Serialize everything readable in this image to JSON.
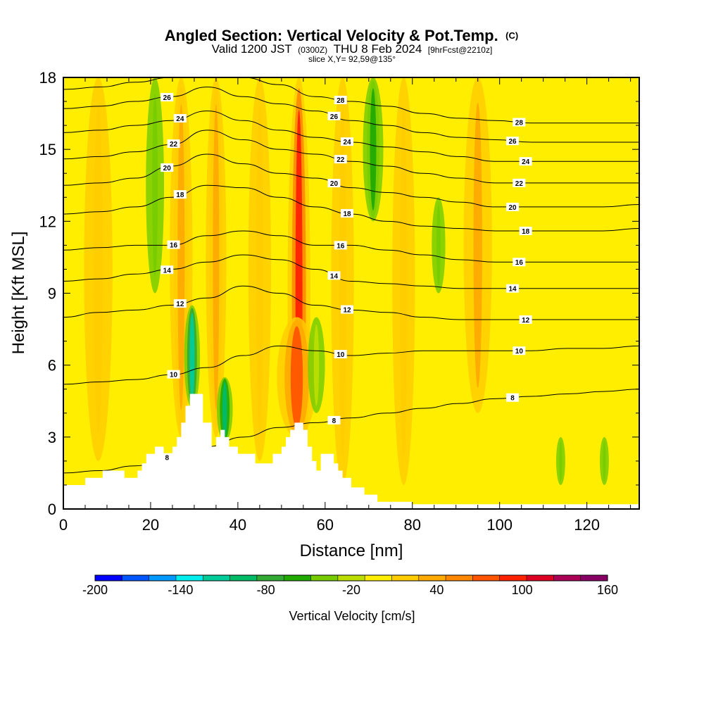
{
  "chart_data": {
    "type": "heatmap",
    "title": "Angled Section: Vertical Velocity & Pot.Temp.",
    "title_unit": "(C)",
    "subtitle_parts": [
      "Valid 1200 JST",
      "(0300Z)",
      "THU 8 Feb 2024",
      "[9hrFcst@2210z]"
    ],
    "subtitle2": "slice X,Y= 92,59@135°",
    "xlabel": "Distance [nm]",
    "ylabel": "Height [Kft MSL]",
    "xlim": [
      0,
      132
    ],
    "ylim": [
      0,
      18
    ],
    "xticks": [
      "0",
      "20",
      "40",
      "60",
      "80",
      "100",
      "120"
    ],
    "yticks": [
      "0",
      "3",
      "6",
      "9",
      "12",
      "15",
      "18"
    ],
    "colorbar": {
      "label": "Vertical Velocity [cm/s]",
      "min": -200,
      "max": 160,
      "step": 20,
      "ticks": [
        "-200",
        "-140",
        "-80",
        "-20",
        "40",
        "100",
        "160"
      ],
      "colors": [
        "#0000ff",
        "#0055ff",
        "#0099ff",
        "#00eeee",
        "#00cc99",
        "#00bb66",
        "#33aa33",
        "#22aa00",
        "#77cc00",
        "#bbdd00",
        "#ffee00",
        "#ffcc00",
        "#ffaa00",
        "#ff8800",
        "#ff5500",
        "#ff2200",
        "#dd0022",
        "#aa0055",
        "#880066"
      ]
    },
    "terrain": [
      [
        0,
        1.0
      ],
      [
        4,
        1.0
      ],
      [
        5,
        1.3
      ],
      [
        8,
        1.3
      ],
      [
        9,
        1.6
      ],
      [
        13,
        1.6
      ],
      [
        14,
        1.3
      ],
      [
        15,
        1.3
      ],
      [
        17,
        1.6
      ],
      [
        18,
        1.9
      ],
      [
        19,
        2.3
      ],
      [
        21,
        2.6
      ],
      [
        23,
        2.3
      ],
      [
        25,
        2.6
      ],
      [
        26,
        3.0
      ],
      [
        27,
        3.6
      ],
      [
        28,
        4.3
      ],
      [
        29,
        4.8
      ],
      [
        31,
        4.8
      ],
      [
        32,
        3.6
      ],
      [
        34,
        2.6
      ],
      [
        35,
        3.0
      ],
      [
        36,
        3.3
      ],
      [
        37,
        3.0
      ],
      [
        38,
        2.6
      ],
      [
        39,
        2.6
      ],
      [
        40,
        2.3
      ],
      [
        42,
        2.3
      ],
      [
        44,
        1.9
      ],
      [
        46,
        1.9
      ],
      [
        48,
        2.3
      ],
      [
        50,
        2.6
      ],
      [
        51,
        3.0
      ],
      [
        52,
        3.3
      ],
      [
        53,
        3.6
      ],
      [
        55,
        3.3
      ],
      [
        56,
        2.6
      ],
      [
        57,
        2.0
      ],
      [
        58,
        1.6
      ],
      [
        59,
        2.3
      ],
      [
        61,
        2.3
      ],
      [
        62,
        1.9
      ],
      [
        63,
        1.6
      ],
      [
        64,
        1.3
      ],
      [
        66,
        0.9
      ],
      [
        69,
        0.6
      ],
      [
        72,
        0.3
      ],
      [
        80,
        0.2
      ],
      [
        100,
        0.2
      ],
      [
        132,
        0.2
      ]
    ],
    "theta_contours": [
      {
        "label": "8",
        "y": [
          1.5,
          1.6,
          1.8,
          2.2,
          2.6,
          3.0,
          3.4,
          3.6,
          3.8,
          4.0,
          4.2,
          4.4,
          4.6,
          4.7,
          4.8,
          4.9,
          5.0
        ]
      },
      {
        "label": "10",
        "y": [
          5.2,
          5.3,
          5.4,
          5.6,
          5.9,
          6.4,
          6.8,
          6.6,
          6.4,
          6.5,
          6.6,
          6.6,
          6.6,
          6.6,
          6.7,
          6.7,
          6.8
        ]
      },
      {
        "label": "12",
        "y": [
          8.0,
          8.2,
          8.3,
          8.5,
          8.8,
          9.3,
          9.0,
          8.5,
          8.3,
          8.2,
          8.0,
          7.9,
          7.9,
          7.9,
          7.9,
          7.9,
          7.9
        ]
      },
      {
        "label": "14",
        "y": [
          9.5,
          9.6,
          9.8,
          10.0,
          10.3,
          10.6,
          10.4,
          10.0,
          9.5,
          9.4,
          9.3,
          9.2,
          9.2,
          9.2,
          9.2,
          9.2,
          9.2
        ]
      },
      {
        "label": "16",
        "y": [
          10.8,
          10.9,
          11.0,
          11.0,
          11.4,
          11.6,
          11.4,
          11.0,
          11.0,
          10.8,
          10.6,
          10.4,
          10.3,
          10.3,
          10.3,
          10.3,
          10.3
        ]
      },
      {
        "label": "18",
        "y": [
          12.3,
          12.4,
          12.6,
          13.0,
          13.5,
          13.4,
          13.0,
          12.6,
          12.3,
          12.0,
          11.8,
          11.7,
          11.6,
          11.6,
          11.6,
          11.6,
          11.7
        ]
      },
      {
        "label": "20",
        "y": [
          13.5,
          13.6,
          13.8,
          14.3,
          14.8,
          14.4,
          14.0,
          13.8,
          13.4,
          13.2,
          13.0,
          12.8,
          12.6,
          12.6,
          12.6,
          12.6,
          12.7
        ]
      },
      {
        "label": "22",
        "y": [
          14.6,
          14.7,
          14.9,
          15.2,
          15.8,
          15.4,
          15.0,
          14.8,
          14.5,
          14.3,
          14.0,
          13.8,
          13.6,
          13.6,
          13.6,
          13.6,
          13.6
        ]
      },
      {
        "label": "24",
        "y": [
          15.7,
          15.8,
          16.0,
          16.2,
          16.6,
          16.2,
          15.8,
          15.5,
          15.3,
          15.1,
          14.9,
          14.7,
          14.5,
          14.5,
          14.5,
          14.5,
          14.5
        ]
      },
      {
        "label": "26",
        "y": [
          16.7,
          16.8,
          17.0,
          17.2,
          17.6,
          17.2,
          16.9,
          16.6,
          16.2,
          16.0,
          15.7,
          15.5,
          15.4,
          15.3,
          15.3,
          15.3,
          15.3
        ]
      },
      {
        "label": "28",
        "y": [
          17.5,
          17.6,
          17.8,
          18.0,
          18.0,
          18.0,
          17.7,
          17.2,
          17.0,
          16.8,
          16.5,
          16.3,
          16.2,
          16.1,
          16.1,
          16.1,
          16.1
        ]
      }
    ],
    "updrafts": [
      {
        "x": 54,
        "y0": 0,
        "y1": 18,
        "w": 2.0,
        "v": 110
      },
      {
        "x": 53.5,
        "y0": 3,
        "y1": 8,
        "w": 3.5,
        "v": 90
      },
      {
        "x": 35,
        "y0": 3,
        "y1": 18,
        "w": 1.8,
        "v": 50
      },
      {
        "x": 27,
        "y0": 3,
        "y1": 18,
        "w": 2.0,
        "v": 50
      },
      {
        "x": 95,
        "y0": 4,
        "y1": 18,
        "w": 2.5,
        "v": 40
      },
      {
        "x": 45,
        "y0": 2,
        "y1": 18,
        "w": 2.0,
        "v": 30
      },
      {
        "x": 78,
        "y0": 1,
        "y1": 18,
        "w": 2.0,
        "v": 30
      },
      {
        "x": 8,
        "y0": 2,
        "y1": 18,
        "w": 2.5,
        "v": 30
      },
      {
        "x": 64,
        "y0": 1,
        "y1": 18,
        "w": 2.0,
        "v": 30
      }
    ],
    "downdrafts": [
      {
        "x": 29.5,
        "y0": 4.2,
        "y1": 8.5,
        "w": 1.4,
        "v": -120
      },
      {
        "x": 37,
        "y0": 2.8,
        "y1": 5.5,
        "w": 1.4,
        "v": -90
      },
      {
        "x": 71,
        "y0": 12,
        "y1": 18,
        "w": 1.8,
        "v": -60
      },
      {
        "x": 21,
        "y0": 9,
        "y1": 18,
        "w": 1.6,
        "v": -40
      },
      {
        "x": 58,
        "y0": 4,
        "y1": 8,
        "w": 1.5,
        "v": -20
      },
      {
        "x": 86,
        "y0": 9,
        "y1": 13,
        "w": 1.2,
        "v": -40
      },
      {
        "x": 114,
        "y0": 1,
        "y1": 3,
        "w": 0.8,
        "v": -40
      },
      {
        "x": 124,
        "y0": 1,
        "y1": 3,
        "w": 0.8,
        "v": -40
      }
    ]
  }
}
